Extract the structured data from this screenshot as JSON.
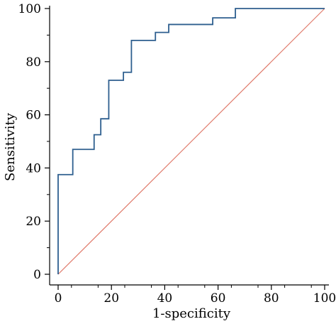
{
  "chart_data": {
    "type": "line",
    "title": "",
    "xlabel": "1-specificity",
    "ylabel": "Sensitivity",
    "xlim": [
      0,
      100
    ],
    "ylim": [
      0,
      100
    ],
    "x_ticks": [
      0,
      20,
      40,
      60,
      80,
      100
    ],
    "y_ticks": [
      0,
      20,
      40,
      60,
      80,
      100
    ],
    "grid": false,
    "legend": "none",
    "series": [
      {
        "key": "roc",
        "color": "#2e5f8f",
        "step": true,
        "x": [
          0,
          0,
          5.5,
          5.5,
          13.5,
          13.5,
          16,
          16,
          19,
          19,
          24.5,
          24.5,
          27.5,
          27.5,
          36.5,
          36.5,
          41.5,
          41.5,
          58,
          58,
          66.5,
          66.5,
          100
        ],
        "y": [
          0,
          37.5,
          37.5,
          47,
          47,
          52.5,
          52.5,
          58.5,
          58.5,
          73,
          73,
          76,
          76,
          88,
          88,
          91,
          91,
          94,
          94,
          96.5,
          96.5,
          100,
          100
        ]
      },
      {
        "key": "reference",
        "color": "#e07a6b",
        "step": false,
        "x": [
          0,
          100
        ],
        "y": [
          0,
          100
        ]
      }
    ]
  }
}
